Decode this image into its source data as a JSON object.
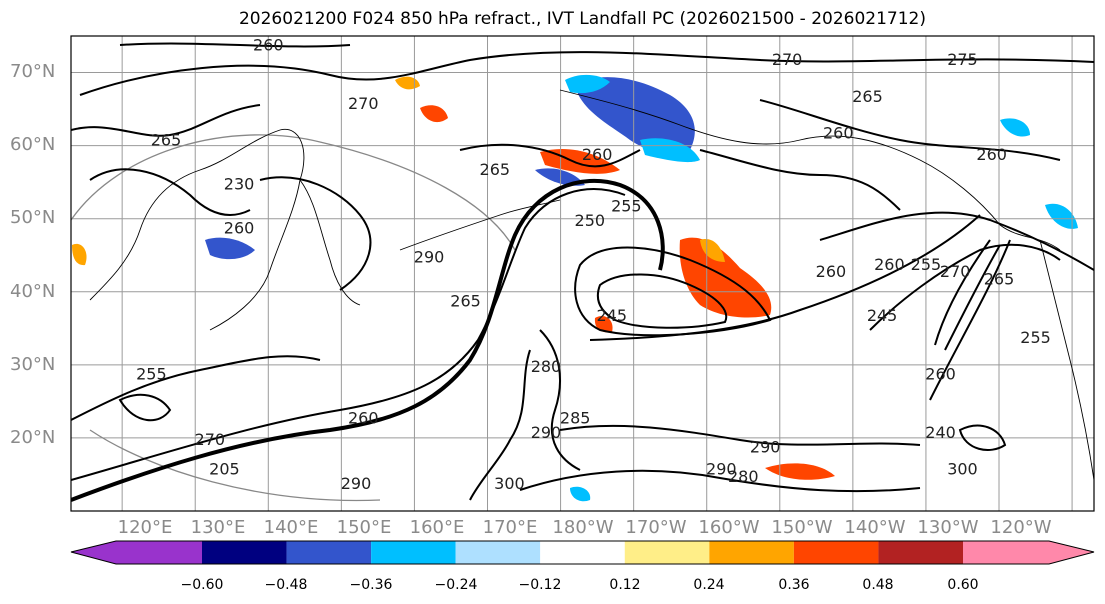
{
  "title": "2026021200 F024 850 hPa refract., IVT Landfall PC (2026021500 - 2026021712)",
  "lat_labels": [
    "70°N",
    "60°N",
    "50°N",
    "40°N",
    "30°N",
    "20°N"
  ],
  "lon_labels": [
    "120°E",
    "130°E",
    "140°E",
    "150°E",
    "160°E",
    "170°E",
    "180°W",
    "170°W",
    "160°W",
    "150°W",
    "140°W",
    "130°W",
    "120°W"
  ],
  "colorbar": {
    "colors": [
      "#9933cc",
      "#000080",
      "#3355cc",
      "#00bfff",
      "#aee0ff",
      "#ffffff",
      "#ffee88",
      "#ffa500",
      "#ff4500",
      "#b22222",
      "#ff88aa"
    ],
    "ticks": [
      "−0.60",
      "−0.48",
      "−0.36",
      "−0.24",
      "−0.12",
      "0.12",
      "0.24",
      "0.36",
      "0.48",
      "0.60"
    ]
  },
  "contour_labels": [
    {
      "text": "260",
      "lon": 140,
      "lat": 73
    },
    {
      "text": "270",
      "lon": 153,
      "lat": 65
    },
    {
      "text": "265",
      "lon": 126,
      "lat": 60
    },
    {
      "text": "260",
      "lon": 136,
      "lat": 48
    },
    {
      "text": "265",
      "lon": 171,
      "lat": 56
    },
    {
      "text": "260",
      "lon": 185,
      "lat": 58
    },
    {
      "text": "270",
      "lon": 211,
      "lat": 71
    },
    {
      "text": "265",
      "lon": 222,
      "lat": 66
    },
    {
      "text": "275",
      "lon": 235,
      "lat": 71
    },
    {
      "text": "260",
      "lon": 218,
      "lat": 61
    },
    {
      "text": "260",
      "lon": 239,
      "lat": 58
    },
    {
      "text": "255",
      "lon": 189,
      "lat": 51
    },
    {
      "text": "250",
      "lon": 184,
      "lat": 49
    },
    {
      "text": "245",
      "lon": 187,
      "lat": 36
    },
    {
      "text": "260",
      "lon": 217,
      "lat": 42
    },
    {
      "text": "260",
      "lon": 225,
      "lat": 43
    },
    {
      "text": "255",
      "lon": 230,
      "lat": 43
    },
    {
      "text": "270",
      "lon": 234,
      "lat": 42
    },
    {
      "text": "265",
      "lon": 240,
      "lat": 41
    },
    {
      "text": "245",
      "lon": 224,
      "lat": 36
    },
    {
      "text": "260",
      "lon": 232,
      "lat": 28
    },
    {
      "text": "265",
      "lon": 167,
      "lat": 38
    },
    {
      "text": "280",
      "lon": 178,
      "lat": 29
    },
    {
      "text": "290",
      "lon": 178,
      "lat": 20
    },
    {
      "text": "285",
      "lon": 182,
      "lat": 22
    },
    {
      "text": "290",
      "lon": 208,
      "lat": 18
    },
    {
      "text": "280",
      "lon": 205,
      "lat": 14
    },
    {
      "text": "290",
      "lon": 202,
      "lat": 15
    },
    {
      "text": "300",
      "lon": 173,
      "lat": 13
    },
    {
      "text": "290",
      "lon": 152,
      "lat": 13
    },
    {
      "text": "270",
      "lon": 132,
      "lat": 19
    },
    {
      "text": "260",
      "lon": 153,
      "lat": 22
    },
    {
      "text": "255",
      "lon": 124,
      "lat": 28
    },
    {
      "text": "205",
      "lon": 134,
      "lat": 15
    },
    {
      "text": "300",
      "lon": 235,
      "lat": 15
    },
    {
      "text": "240",
      "lon": 232,
      "lat": 20
    },
    {
      "text": "255",
      "lon": 245,
      "lat": 33
    },
    {
      "text": "230",
      "lon": 136,
      "lat": 54
    },
    {
      "text": "290",
      "lon": 162,
      "lat": 44
    }
  ]
}
